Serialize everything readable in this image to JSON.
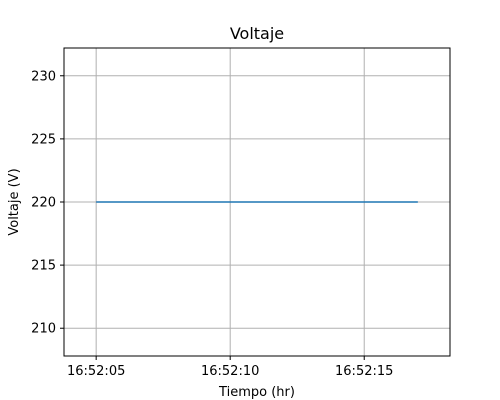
{
  "chart_data": {
    "type": "line",
    "title": "Voltaje",
    "xlabel": "Tiempo (hr)",
    "ylabel": "Voltaje (V)",
    "x": [
      "16:52:05",
      "16:52:17"
    ],
    "x_seconds": [
      5,
      17
    ],
    "xlim_seconds": [
      3.8,
      18.2
    ],
    "ylim": [
      207.8,
      232.2
    ],
    "x_ticks": [
      {
        "value": 5,
        "label": "16:52:05"
      },
      {
        "value": 10,
        "label": "16:52:10"
      },
      {
        "value": 15,
        "label": "16:52:15"
      }
    ],
    "y_ticks": [
      210,
      215,
      220,
      225,
      230
    ],
    "series": [
      {
        "color": "#1f77b4",
        "x_seconds": [
          5,
          17
        ],
        "values": [
          220,
          220
        ]
      }
    ],
    "grid": true
  }
}
